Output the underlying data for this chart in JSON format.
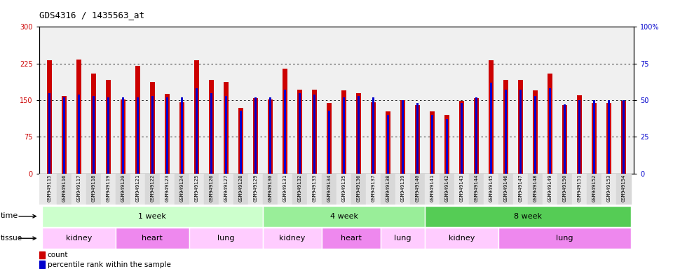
{
  "title": "GDS4316 / 1435563_at",
  "samples": [
    "GSM949115",
    "GSM949116",
    "GSM949117",
    "GSM949118",
    "GSM949119",
    "GSM949120",
    "GSM949121",
    "GSM949122",
    "GSM949123",
    "GSM949124",
    "GSM949125",
    "GSM949126",
    "GSM949127",
    "GSM949128",
    "GSM949129",
    "GSM949130",
    "GSM949131",
    "GSM949132",
    "GSM949133",
    "GSM949134",
    "GSM949135",
    "GSM949136",
    "GSM949137",
    "GSM949138",
    "GSM949139",
    "GSM949140",
    "GSM949141",
    "GSM949142",
    "GSM949143",
    "GSM949144",
    "GSM949145",
    "GSM949146",
    "GSM949147",
    "GSM949148",
    "GSM949149",
    "GSM949150",
    "GSM949151",
    "GSM949152",
    "GSM949153",
    "GSM949154"
  ],
  "counts": [
    232,
    158,
    233,
    205,
    192,
    152,
    220,
    188,
    163,
    146,
    232,
    192,
    187,
    135,
    155,
    152,
    215,
    172,
    172,
    145,
    170,
    165,
    146,
    127,
    150,
    140,
    127,
    120,
    148,
    155,
    232,
    192,
    192,
    170,
    205,
    140,
    160,
    145,
    145,
    148
  ],
  "percentiles": [
    55,
    52,
    54,
    53,
    52,
    52,
    52,
    53,
    52,
    52,
    58,
    55,
    53,
    43,
    52,
    52,
    57,
    55,
    54,
    43,
    52,
    53,
    52,
    40,
    50,
    48,
    40,
    37,
    48,
    52,
    62,
    57,
    57,
    53,
    58,
    47,
    50,
    50,
    50,
    50
  ],
  "ylim_left": [
    0,
    300
  ],
  "ylim_right": [
    0,
    100
  ],
  "yticks_left": [
    0,
    75,
    150,
    225,
    300
  ],
  "yticks_right": [
    0,
    25,
    50,
    75,
    100
  ],
  "yticklabels_right": [
    "0",
    "25",
    "50",
    "75",
    "100%"
  ],
  "bar_color": "#cc0000",
  "percentile_color": "#0000cc",
  "background_color": "#ffffff",
  "time_groups": [
    {
      "label": "1 week",
      "start": 0,
      "end": 14,
      "color": "#ccffcc"
    },
    {
      "label": "4 week",
      "start": 15,
      "end": 25,
      "color": "#99ee99"
    },
    {
      "label": "8 week",
      "start": 26,
      "end": 39,
      "color": "#55cc55"
    }
  ],
  "tissue_groups": [
    {
      "label": "kidney",
      "start": 0,
      "end": 4,
      "color": "#ffccff"
    },
    {
      "label": "heart",
      "start": 5,
      "end": 9,
      "color": "#ee88ee"
    },
    {
      "label": "lung",
      "start": 10,
      "end": 14,
      "color": "#ffccff"
    },
    {
      "label": "kidney",
      "start": 15,
      "end": 18,
      "color": "#ffccff"
    },
    {
      "label": "heart",
      "start": 19,
      "end": 22,
      "color": "#ee88ee"
    },
    {
      "label": "lung",
      "start": 23,
      "end": 25,
      "color": "#ffccff"
    },
    {
      "label": "kidney",
      "start": 26,
      "end": 30,
      "color": "#ffccff"
    },
    {
      "label": "lung",
      "start": 31,
      "end": 39,
      "color": "#ee88ee"
    }
  ]
}
